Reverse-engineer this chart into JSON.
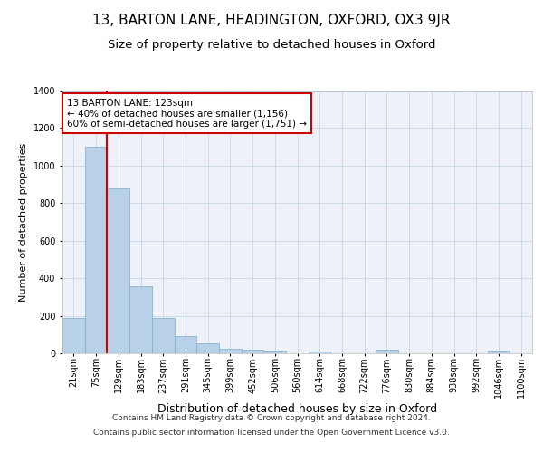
{
  "title1": "13, BARTON LANE, HEADINGTON, OXFORD, OX3 9JR",
  "title2": "Size of property relative to detached houses in Oxford",
  "xlabel": "Distribution of detached houses by size in Oxford",
  "ylabel": "Number of detached properties",
  "footer1": "Contains HM Land Registry data © Crown copyright and database right 2024.",
  "footer2": "Contains public sector information licensed under the Open Government Licence v3.0.",
  "bar_labels": [
    "21sqm",
    "75sqm",
    "129sqm",
    "183sqm",
    "237sqm",
    "291sqm",
    "345sqm",
    "399sqm",
    "452sqm",
    "506sqm",
    "560sqm",
    "614sqm",
    "668sqm",
    "722sqm",
    "776sqm",
    "830sqm",
    "884sqm",
    "938sqm",
    "992sqm",
    "1046sqm",
    "1100sqm"
  ],
  "bar_values": [
    190,
    1100,
    880,
    355,
    190,
    90,
    55,
    25,
    20,
    15,
    0,
    10,
    0,
    0,
    20,
    0,
    0,
    0,
    0,
    15,
    0
  ],
  "bar_color": "#b8d0e8",
  "bar_edge_color": "#7aaac8",
  "property_label": "13 BARTON LANE: 123sqm",
  "annotation_line1": "← 40% of detached houses are smaller (1,156)",
  "annotation_line2": "60% of semi-detached houses are larger (1,751) →",
  "vline_color": "#cc0000",
  "ylim": [
    0,
    1400
  ],
  "yticks": [
    0,
    200,
    400,
    600,
    800,
    1000,
    1200,
    1400
  ],
  "background_color": "#eef2f8",
  "grid_color": "#c5d5e8",
  "title1_fontsize": 11,
  "title2_fontsize": 9.5,
  "xlabel_fontsize": 9,
  "ylabel_fontsize": 8,
  "tick_fontsize": 7,
  "footer_fontsize": 6.5,
  "annotation_fontsize": 7.5
}
